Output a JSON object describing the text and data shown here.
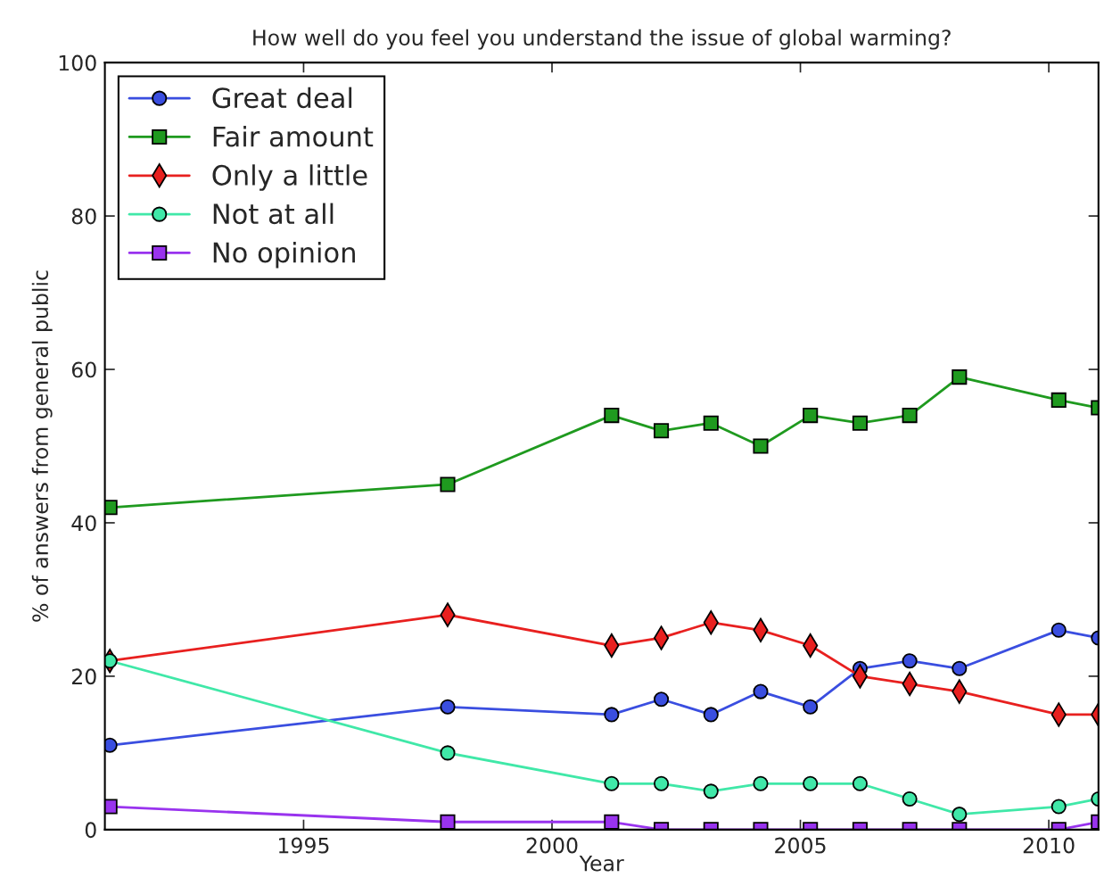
{
  "chart_data": {
    "type": "line",
    "title": "How well do you feel you understand the issue of global warming?",
    "xlabel": "Year",
    "ylabel": "% of answers from general public",
    "x": [
      1991.1,
      1997.9,
      2001.2,
      2002.2,
      2003.2,
      2004.2,
      2005.2,
      2006.2,
      2007.2,
      2008.2,
      2010.2,
      2011
    ],
    "series": [
      {
        "name": "Great deal",
        "color": "#3a4ee0",
        "marker": "circle",
        "values": [
          11,
          16,
          15,
          17,
          15,
          18,
          16,
          21,
          22,
          21,
          26,
          25
        ]
      },
      {
        "name": "Fair amount",
        "color": "#1f9a1f",
        "marker": "square",
        "values": [
          42,
          45,
          54,
          52,
          53,
          50,
          54,
          53,
          54,
          59,
          56,
          55
        ]
      },
      {
        "name": "Only a little",
        "color": "#e8201f",
        "marker": "diamond",
        "values": [
          22,
          28,
          24,
          25,
          27,
          26,
          24,
          20,
          19,
          18,
          15,
          15
        ]
      },
      {
        "name": "Not at all",
        "color": "#40e8a8",
        "marker": "circle",
        "values": [
          22,
          10,
          6,
          6,
          5,
          6,
          6,
          6,
          4,
          2,
          3,
          4
        ]
      },
      {
        "name": "No opinion",
        "color": "#9933ee",
        "marker": "square",
        "values": [
          3,
          1,
          1,
          0,
          0,
          0,
          0,
          0,
          0,
          0,
          0,
          1
        ]
      }
    ],
    "xlim": [
      1991,
      2011
    ],
    "xticks": [
      1995,
      2000,
      2005,
      2010
    ],
    "ylim": [
      0,
      100
    ],
    "yticks": [
      0,
      20,
      40,
      60,
      80,
      100
    ],
    "grid": false,
    "legend": "top left",
    "line_style": "solid"
  }
}
